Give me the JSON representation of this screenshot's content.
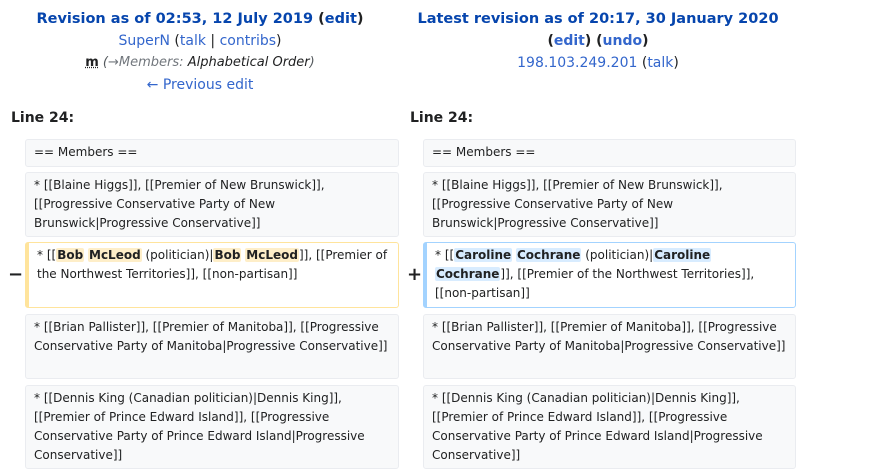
{
  "left_header": {
    "title_prefix": "Revision as of 02:53, 12 July 2019",
    "edit_link": "edit",
    "user": "SuperN",
    "talk": "talk",
    "contribs": "contribs",
    "minor_flag": "m",
    "section_arrow": "→",
    "section": "Members:",
    "summary": "Alphabetical Order",
    "prev_link": "← Previous edit"
  },
  "right_header": {
    "title_prefix": "Latest revision as of 20:17, 30 January 2020",
    "edit_link": "edit",
    "undo_link": "undo",
    "user": "198.103.249.201",
    "talk": "talk"
  },
  "line_label": "Line 24:",
  "rows": {
    "members": "== Members ==",
    "blaine": "* [[Blaine Higgs]], [[Premier of New Brunswick]], [[Progressive Conservative Party of New Brunswick|Progressive Conservative]]",
    "changed_left": {
      "p1": "* [[",
      "d1": "Bob",
      "d2": "McLeod",
      "p2": " (politician)|",
      "d3": "Bob",
      "d4": "McLeod",
      "p3": "]], [[Premier of the Northwest Territories]], [[non-partisan]]"
    },
    "changed_right": {
      "p1": "* [[",
      "i1": "Caroline",
      "i2": "Cochrane",
      "p2": " (politician)|",
      "i3": "Caroline",
      "i4": "Cochrane",
      "p3": "]], [[Premier of the Northwest Territories]], [[non-partisan]]"
    },
    "brian": "* [[Brian Pallister]], [[Premier of Manitoba]], [[Progressive Conservative Party of Manitoba|Progressive Conservative]]",
    "dennis": "* [[Dennis King (Canadian politician)|Dennis King]], [[Premier of Prince Edward Island]], [[Progressive Conservative Party of Prince Edward Island|Progressive Conservative]]"
  },
  "markers": {
    "minus": "−",
    "plus": "+"
  },
  "colors": {
    "link": "#3366cc",
    "deleted_border": "#ffe49c",
    "added_border": "#a3d3ff"
  }
}
